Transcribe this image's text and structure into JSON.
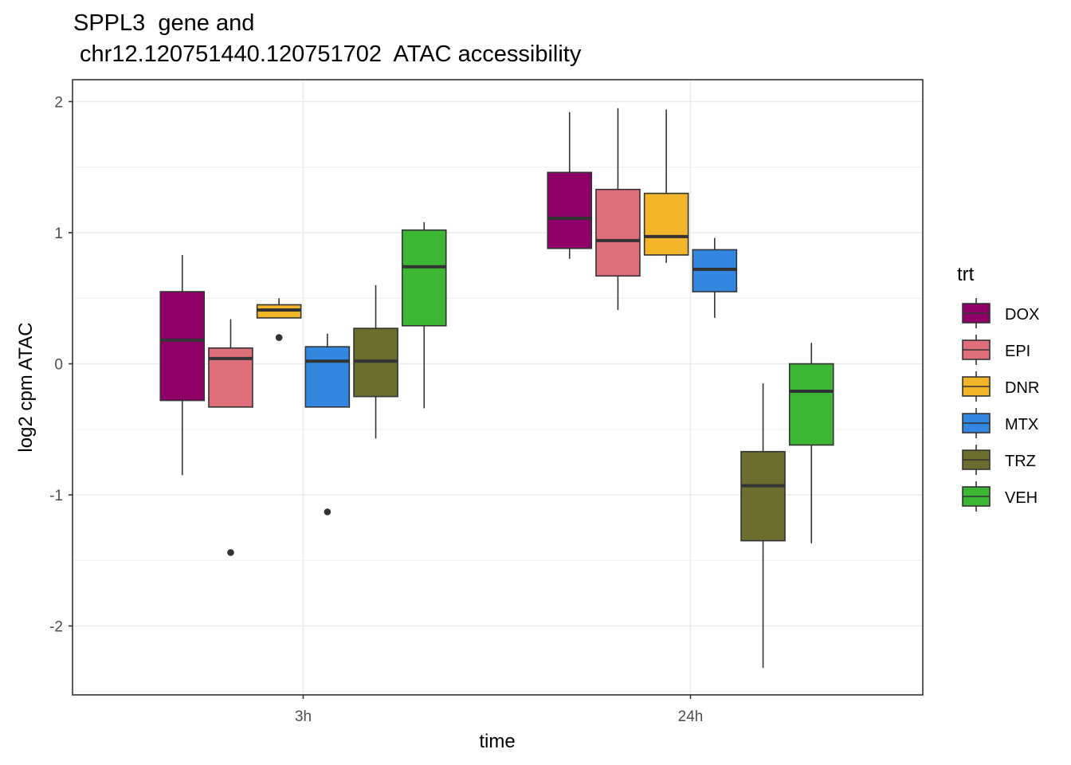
{
  "title_line1": "SPPL3  gene and",
  "title_line2": " chr12.120751440.120751702  ATAC accessibility",
  "chart_data": {
    "type": "boxplot",
    "title": "SPPL3  gene and\n chr12.120751440.120751702  ATAC accessibility",
    "xlabel": "time",
    "ylabel": "log2 cpm ATAC",
    "categories": [
      "3h",
      "24h"
    ],
    "yticks": [
      2,
      1,
      0,
      -1,
      -2
    ],
    "ytick_labels": [
      "2",
      "1",
      "0",
      "-1",
      "-2"
    ],
    "ylim": [
      -2.5,
      2.2
    ],
    "legend_title": "trt",
    "legend_position": "right",
    "grid": true,
    "series": [
      {
        "name": "DOX",
        "color": "#8E0067",
        "boxes": [
          {
            "category": "3h",
            "whisker_low": -0.85,
            "q1": -0.28,
            "median": 0.18,
            "q3": 0.55,
            "whisker_high": 0.83,
            "outliers": []
          },
          {
            "category": "24h",
            "whisker_low": 0.8,
            "q1": 0.88,
            "median": 1.11,
            "q3": 1.46,
            "whisker_high": 1.92,
            "outliers": []
          }
        ]
      },
      {
        "name": "EPI",
        "color": "#E06F7C",
        "boxes": [
          {
            "category": "3h",
            "whisker_low": -0.33,
            "q1": -0.33,
            "median": 0.04,
            "q3": 0.12,
            "whisker_high": 0.34,
            "outliers": [
              -1.44
            ]
          },
          {
            "category": "24h",
            "whisker_low": 0.41,
            "q1": 0.67,
            "median": 0.94,
            "q3": 1.33,
            "whisker_high": 1.95,
            "outliers": []
          }
        ]
      },
      {
        "name": "DNR",
        "color": "#F2B52A",
        "boxes": [
          {
            "category": "3h",
            "whisker_low": 0.35,
            "q1": 0.35,
            "median": 0.41,
            "q3": 0.45,
            "whisker_high": 0.5,
            "outliers": [
              0.2
            ]
          },
          {
            "category": "24h",
            "whisker_low": 0.77,
            "q1": 0.83,
            "median": 0.97,
            "q3": 1.3,
            "whisker_high": 1.94,
            "outliers": []
          }
        ]
      },
      {
        "name": "MTX",
        "color": "#3387E0",
        "boxes": [
          {
            "category": "3h",
            "whisker_low": -0.33,
            "q1": -0.33,
            "median": 0.02,
            "q3": 0.13,
            "whisker_high": 0.23,
            "outliers": [
              -1.13
            ]
          },
          {
            "category": "24h",
            "whisker_low": 0.35,
            "q1": 0.55,
            "median": 0.72,
            "q3": 0.87,
            "whisker_high": 0.96,
            "outliers": []
          }
        ]
      },
      {
        "name": "TRZ",
        "color": "#6E6D30",
        "boxes": [
          {
            "category": "3h",
            "whisker_low": -0.57,
            "q1": -0.25,
            "median": 0.02,
            "q3": 0.27,
            "whisker_high": 0.6,
            "outliers": []
          },
          {
            "category": "24h",
            "whisker_low": -2.32,
            "q1": -1.35,
            "median": -0.93,
            "q3": -0.67,
            "whisker_high": -0.15,
            "outliers": []
          }
        ]
      },
      {
        "name": "VEH",
        "color": "#3DB535",
        "boxes": [
          {
            "category": "3h",
            "whisker_low": -0.34,
            "q1": 0.29,
            "median": 0.74,
            "q3": 1.02,
            "whisker_high": 1.08,
            "outliers": []
          },
          {
            "category": "24h",
            "whisker_low": -1.37,
            "q1": -0.62,
            "median": -0.21,
            "q3": 0.0,
            "whisker_high": 0.16,
            "outliers": []
          }
        ]
      }
    ]
  }
}
